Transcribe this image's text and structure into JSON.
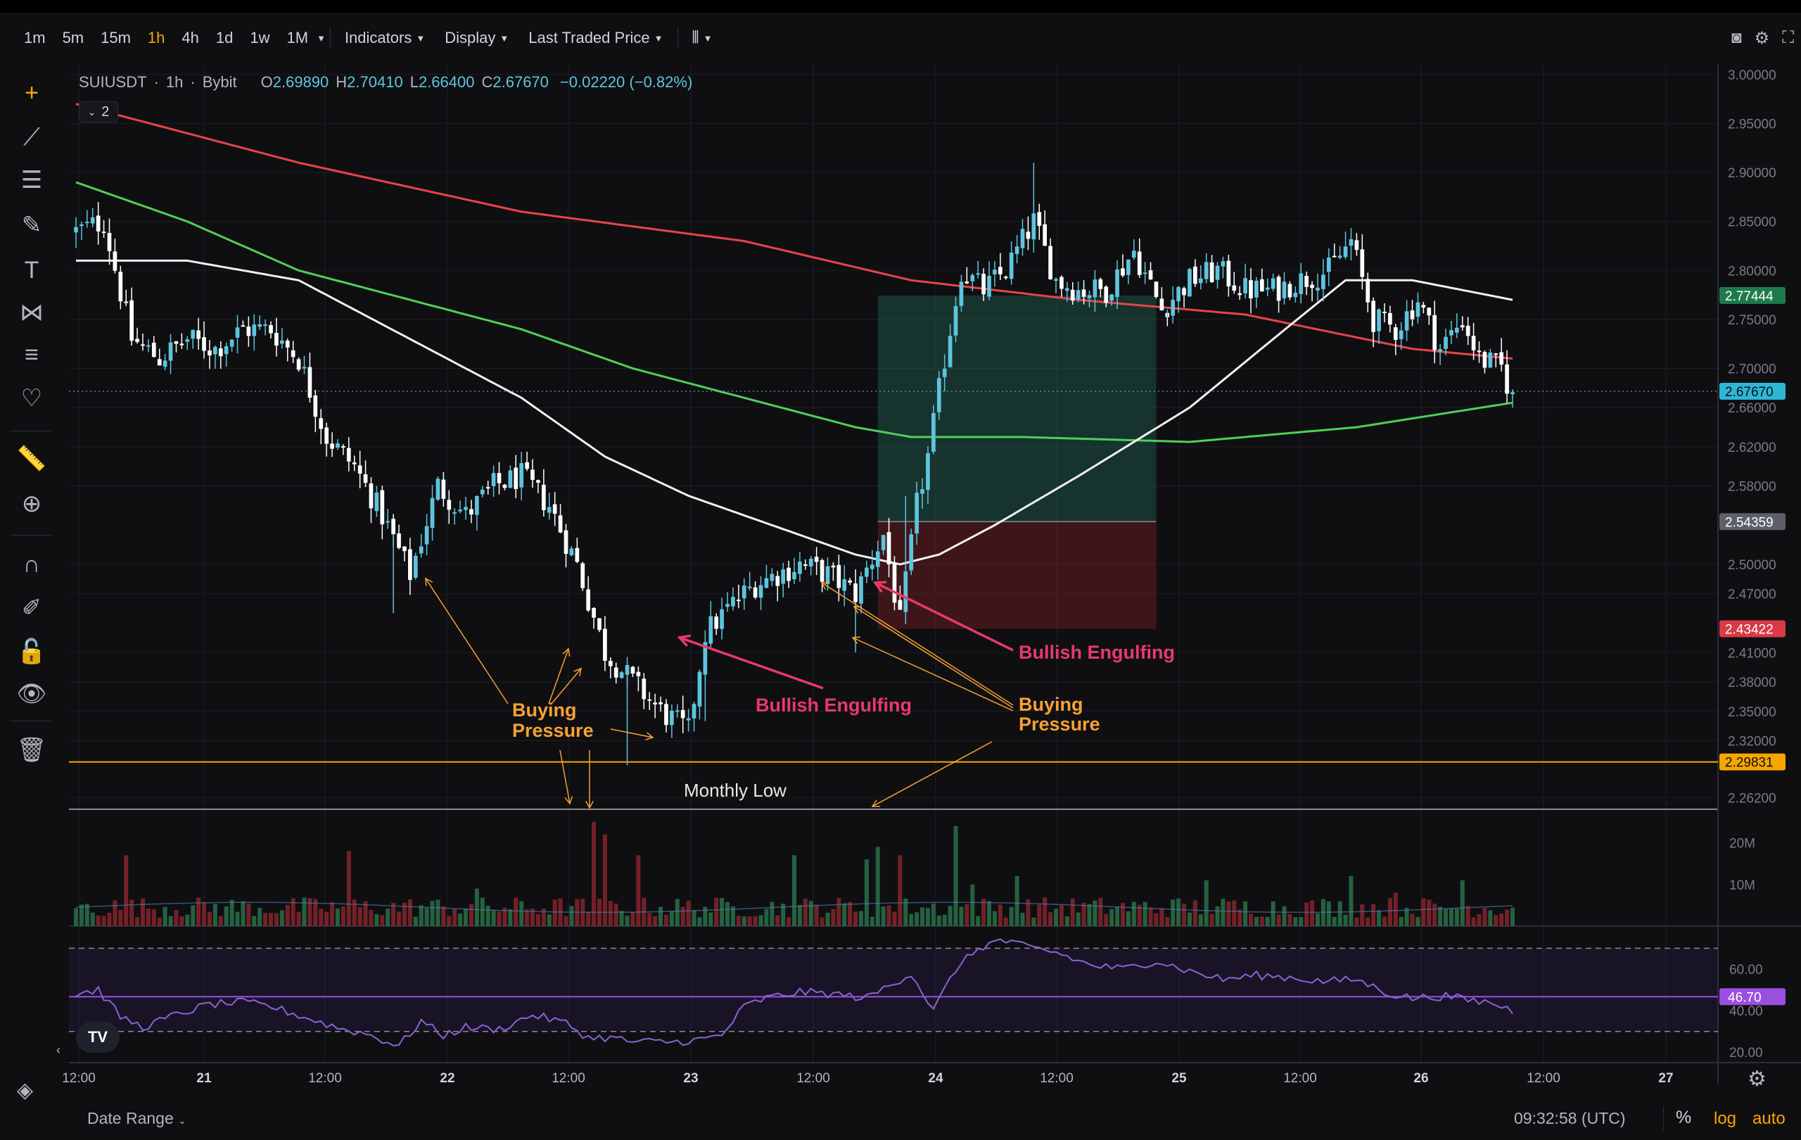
{
  "toolbar": {
    "timeframes": [
      "1m",
      "5m",
      "15m",
      "1h",
      "4h",
      "1d",
      "1w",
      "1M"
    ],
    "active_timeframe": "1h",
    "indicators_label": "Indicators",
    "display_label": "Display",
    "price_source_label": "Last Traded Price"
  },
  "icons": {
    "top_right": [
      "camera-icon",
      "settings-icon",
      "fullscreen-icon"
    ],
    "left_tools": [
      "crosshair-icon",
      "trendline-icon",
      "fib-icon",
      "brush-icon",
      "text-icon",
      "pattern-icon",
      "forecast-icon",
      "heart-icon",
      "ruler-icon",
      "zoom-in-icon",
      "magnet-icon",
      "lock-draw-icon",
      "unlock-icon",
      "eye-icon",
      "trash-icon"
    ]
  },
  "legend": {
    "symbol": "SUIUSDT",
    "interval": "1h",
    "exchange": "Bybit",
    "open": "2.69890",
    "high": "2.70410",
    "low": "2.66400",
    "close": "2.67670",
    "change": "−0.02220 (−0.82%)",
    "indicator_count": "2"
  },
  "price_axis": {
    "ticks": [
      "3.00000",
      "2.95000",
      "2.90000",
      "2.85000",
      "2.80000",
      "2.75000",
      "2.70000",
      "2.66000",
      "2.62000",
      "2.58000",
      "2.50000",
      "2.47000",
      "2.41000",
      "2.38000",
      "2.35000",
      "2.32000",
      "2.26200"
    ],
    "tags": {
      "target": "2.77444",
      "last": "2.67670",
      "entry": "2.54359",
      "stop": "2.43422",
      "monthly_low": "2.29831"
    }
  },
  "volume_axis": {
    "ticks": [
      "20M",
      "10M"
    ]
  },
  "rsi_axis": {
    "ticks": [
      "60.00",
      "40.00",
      "20.00"
    ],
    "value": "46.70"
  },
  "time_axis": {
    "ticks": [
      "12:00",
      "21",
      "12:00",
      "22",
      "12:00",
      "23",
      "12:00",
      "24",
      "12:00",
      "25",
      "12:00",
      "26",
      "12:00",
      "27"
    ]
  },
  "annotations": {
    "bullish_engulfing": "Bullish Engulfing",
    "buying_pressure_line1": "Buying",
    "buying_pressure_line2": "Pressure",
    "monthly_low": "Monthly Low"
  },
  "bottom_bar": {
    "date_range": "Date Range",
    "clock": "09:32:58 (UTC)",
    "percent": "%",
    "log": "log",
    "auto": "auto"
  },
  "colors": {
    "up": "#5ec4dd",
    "down": "#ffffff",
    "ema_red": "#e8434b",
    "ema_green": "#4fcf5a",
    "ema_white": "#f0f0f0",
    "rsi": "#8a63d2",
    "annot_pink": "#e8396b",
    "annot_orange": "#f7a133",
    "accent": "#f7a600"
  },
  "chart_data": {
    "type": "candlestick",
    "symbol": "SUIUSDT",
    "interval": "1h",
    "anchors": [
      [
        0,
        2.84
      ],
      [
        5,
        2.85
      ],
      [
        10,
        2.73
      ],
      [
        15,
        2.71
      ],
      [
        20,
        2.73
      ],
      [
        25,
        2.72
      ],
      [
        30,
        2.74
      ],
      [
        35,
        2.74
      ],
      [
        40,
        2.71
      ],
      [
        45,
        2.63
      ],
      [
        50,
        2.6
      ],
      [
        55,
        2.55
      ],
      [
        60,
        2.49
      ],
      [
        65,
        2.58
      ],
      [
        70,
        2.55
      ],
      [
        75,
        2.58
      ],
      [
        80,
        2.59
      ],
      [
        85,
        2.56
      ],
      [
        90,
        2.5
      ],
      [
        95,
        2.41
      ],
      [
        100,
        2.38
      ],
      [
        105,
        2.35
      ],
      [
        110,
        2.33
      ],
      [
        113,
        2.43
      ],
      [
        118,
        2.46
      ],
      [
        122,
        2.48
      ],
      [
        126,
        2.49
      ],
      [
        130,
        2.5
      ],
      [
        135,
        2.49
      ],
      [
        140,
        2.47
      ],
      [
        145,
        2.53
      ],
      [
        148,
        2.44
      ],
      [
        151,
        2.56
      ],
      [
        153,
        2.61
      ],
      [
        156,
        2.71
      ],
      [
        159,
        2.8
      ],
      [
        163,
        2.78
      ],
      [
        167,
        2.8
      ],
      [
        172,
        2.85
      ],
      [
        176,
        2.79
      ],
      [
        180,
        2.78
      ],
      [
        185,
        2.78
      ],
      [
        190,
        2.82
      ],
      [
        195,
        2.76
      ],
      [
        200,
        2.79
      ],
      [
        205,
        2.8
      ],
      [
        210,
        2.78
      ],
      [
        215,
        2.78
      ],
      [
        220,
        2.79
      ],
      [
        225,
        2.8
      ],
      [
        229,
        2.83
      ],
      [
        233,
        2.75
      ],
      [
        237,
        2.74
      ],
      [
        241,
        2.77
      ],
      [
        245,
        2.72
      ],
      [
        249,
        2.75
      ],
      [
        252,
        2.71
      ],
      [
        256,
        2.7
      ],
      [
        258,
        2.67
      ]
    ],
    "candles_count": 259,
    "ema_red_anchors": [
      [
        0,
        2.97
      ],
      [
        40,
        2.91
      ],
      [
        80,
        2.86
      ],
      [
        120,
        2.83
      ],
      [
        150,
        2.79
      ],
      [
        180,
        2.77
      ],
      [
        210,
        2.755
      ],
      [
        240,
        2.72
      ],
      [
        258,
        2.71
      ]
    ],
    "ema_green_anchors": [
      [
        0,
        2.89
      ],
      [
        20,
        2.85
      ],
      [
        40,
        2.8
      ],
      [
        60,
        2.77
      ],
      [
        80,
        2.74
      ],
      [
        100,
        2.7
      ],
      [
        120,
        2.67
      ],
      [
        140,
        2.64
      ],
      [
        150,
        2.63
      ],
      [
        170,
        2.63
      ],
      [
        200,
        2.625
      ],
      [
        230,
        2.64
      ],
      [
        258,
        2.665
      ]
    ],
    "ema_white_anchors": [
      [
        0,
        2.81
      ],
      [
        20,
        2.81
      ],
      [
        40,
        2.79
      ],
      [
        60,
        2.73
      ],
      [
        80,
        2.67
      ],
      [
        95,
        2.61
      ],
      [
        110,
        2.57
      ],
      [
        125,
        2.54
      ],
      [
        140,
        2.51
      ],
      [
        148,
        2.5
      ],
      [
        155,
        2.51
      ],
      [
        165,
        2.54
      ],
      [
        180,
        2.59
      ],
      [
        200,
        2.66
      ],
      [
        215,
        2.73
      ],
      [
        228,
        2.79
      ],
      [
        240,
        2.79
      ],
      [
        258,
        2.77
      ]
    ],
    "rsi_anchors": [
      [
        0,
        48
      ],
      [
        4,
        50
      ],
      [
        8,
        37
      ],
      [
        12,
        32
      ],
      [
        18,
        38
      ],
      [
        24,
        43
      ],
      [
        30,
        44
      ],
      [
        35,
        42
      ],
      [
        42,
        36
      ],
      [
        48,
        31
      ],
      [
        52,
        29
      ],
      [
        58,
        23
      ],
      [
        62,
        35
      ],
      [
        66,
        28
      ],
      [
        70,
        32
      ],
      [
        76,
        31
      ],
      [
        82,
        38
      ],
      [
        88,
        34
      ],
      [
        92,
        27
      ],
      [
        96,
        27
      ],
      [
        100,
        25
      ],
      [
        104,
        25
      ],
      [
        108,
        25
      ],
      [
        112,
        26
      ],
      [
        116,
        28
      ],
      [
        120,
        42
      ],
      [
        124,
        46
      ],
      [
        130,
        49
      ],
      [
        136,
        48
      ],
      [
        142,
        46
      ],
      [
        146,
        52
      ],
      [
        150,
        58
      ],
      [
        154,
        40
      ],
      [
        158,
        60
      ],
      [
        162,
        70
      ],
      [
        166,
        74
      ],
      [
        170,
        71
      ],
      [
        176,
        68
      ],
      [
        182,
        62
      ],
      [
        188,
        60
      ],
      [
        194,
        64
      ],
      [
        200,
        59
      ],
      [
        206,
        55
      ],
      [
        212,
        57
      ],
      [
        218,
        56
      ],
      [
        224,
        54
      ],
      [
        230,
        55
      ],
      [
        236,
        48
      ],
      [
        240,
        46
      ],
      [
        246,
        47
      ],
      [
        250,
        45
      ],
      [
        254,
        44
      ],
      [
        258,
        40
      ]
    ],
    "volume_spikes": [
      [
        9,
        17
      ],
      [
        49,
        18
      ],
      [
        72,
        9
      ],
      [
        93,
        25
      ],
      [
        95,
        22
      ],
      [
        101,
        17
      ],
      [
        129,
        17
      ],
      [
        142,
        16
      ],
      [
        144,
        19
      ],
      [
        148,
        17
      ],
      [
        158,
        24
      ],
      [
        161,
        10
      ],
      [
        169,
        12
      ],
      [
        203,
        11
      ],
      [
        229,
        12
      ],
      [
        237,
        8
      ],
      [
        249,
        11
      ]
    ],
    "position": {
      "entry": 2.54359,
      "target": 2.77444,
      "stop": 2.43422,
      "start_bar": 144,
      "end_bar": 194
    },
    "monthly_low": 2.29831,
    "y_range": [
      2.25,
      3.01
    ],
    "rsi_range": [
      15,
      80
    ],
    "rsi_band": [
      30,
      70
    ],
    "rsi_mid": 46.7
  }
}
